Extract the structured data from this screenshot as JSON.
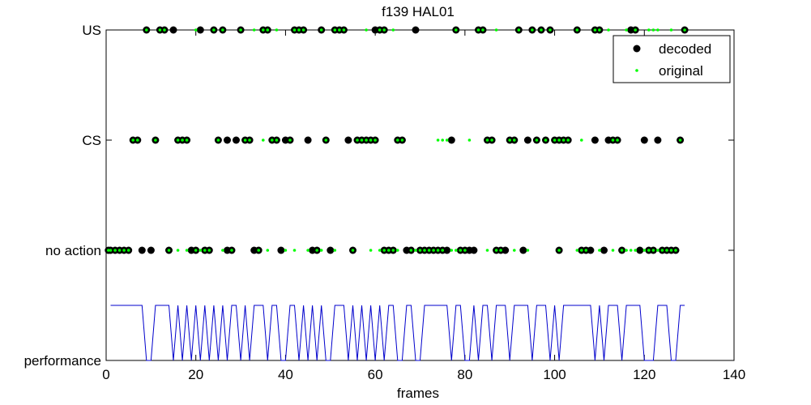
{
  "chart_data": {
    "type": "scatter",
    "title": "f139 HAL01",
    "xlabel": "frames",
    "ylabel": "",
    "xlim": [
      0,
      140
    ],
    "xticks": [
      0,
      20,
      40,
      60,
      80,
      100,
      120,
      140
    ],
    "y_categories": [
      "performance",
      "no action",
      "CS",
      "US"
    ],
    "grid": false,
    "legend_position": "top-right",
    "series": [
      {
        "name": "decoded",
        "marker": "filled-circle",
        "color": "#000000",
        "points": {
          "US": [
            9,
            12,
            13,
            15,
            21,
            24,
            26,
            30,
            35,
            36,
            42,
            43,
            44,
            48,
            51,
            52,
            53,
            60,
            61,
            62,
            69,
            78,
            83,
            84,
            92,
            95,
            97,
            99,
            105,
            109,
            110,
            117,
            118,
            129
          ],
          "CS": [
            6,
            7,
            11,
            16,
            17,
            18,
            25,
            27,
            29,
            31,
            32,
            37,
            38,
            40,
            41,
            45,
            49,
            54,
            56,
            57,
            58,
            59,
            60,
            65,
            66,
            77,
            85,
            86,
            90,
            91,
            94,
            96,
            98,
            100,
            101,
            102,
            103,
            109,
            112,
            113,
            114,
            120,
            123,
            128
          ],
          "no action": [
            0.5,
            1,
            2,
            3,
            4,
            5,
            8,
            10,
            14,
            19,
            20,
            22,
            23,
            27,
            28,
            33,
            34,
            39,
            46,
            47,
            50,
            55,
            62,
            63,
            64,
            67,
            68,
            70,
            71,
            72,
            73,
            74,
            75,
            76,
            79,
            80,
            81,
            82,
            87,
            88,
            89,
            93,
            101,
            106,
            107,
            108,
            111,
            115,
            119,
            121,
            122,
            124,
            125,
            126,
            127
          ]
        }
      },
      {
        "name": "original",
        "marker": "point",
        "color": "#00ff00",
        "points": {
          "US": [
            9,
            12,
            13,
            20,
            24,
            26,
            30,
            33,
            35,
            36,
            38,
            42,
            43,
            44,
            48,
            51,
            52,
            53,
            58,
            61,
            62,
            64,
            78,
            83,
            84,
            87,
            92,
            95,
            97,
            99,
            105,
            109,
            110,
            112,
            116,
            118,
            121,
            122,
            123,
            126,
            129
          ],
          "CS": [
            6,
            7,
            11,
            16,
            17,
            18,
            25,
            31,
            32,
            35,
            37,
            38,
            41,
            49,
            56,
            57,
            58,
            59,
            60,
            65,
            66,
            74,
            75,
            76,
            81,
            85,
            86,
            90,
            91,
            96,
            98,
            100,
            101,
            102,
            103,
            106,
            113,
            114,
            128
          ],
          "no action": [
            0.5,
            1,
            2,
            3,
            4,
            5,
            14,
            16,
            18,
            20,
            21,
            22,
            23,
            26,
            28,
            34,
            36,
            40,
            42,
            45,
            47,
            48,
            51,
            55,
            59,
            61,
            62,
            63,
            64,
            65,
            68,
            69,
            70,
            71,
            72,
            73,
            74,
            75,
            77,
            78,
            79,
            80,
            85,
            87,
            88,
            91,
            94,
            101,
            105,
            106,
            107,
            110,
            113,
            115,
            116,
            117,
            118,
            120,
            121,
            122,
            123,
            124,
            125,
            126,
            127
          ]
        }
      },
      {
        "name": "",
        "type": "line",
        "color": "#0000cc",
        "x": [
          1,
          8,
          9,
          10,
          11,
          12,
          13,
          14,
          15,
          16,
          17,
          18,
          19,
          20,
          21,
          22,
          23,
          24,
          25,
          26,
          27,
          28,
          29,
          30,
          31,
          32,
          33,
          34,
          35,
          36,
          37,
          38,
          39,
          40,
          41,
          42,
          43,
          44,
          45,
          46,
          47,
          48,
          49,
          50,
          51,
          52,
          53,
          54,
          55,
          56,
          57,
          58,
          59,
          60,
          61,
          62,
          63,
          64,
          65,
          66,
          67,
          68,
          69,
          70,
          71,
          72,
          73,
          74,
          75,
          76,
          77,
          78,
          79,
          80,
          81,
          82,
          83,
          84,
          85,
          86,
          87,
          88,
          89,
          90,
          91,
          92,
          93,
          94,
          95,
          96,
          97,
          98,
          99,
          100,
          101,
          102,
          103,
          104,
          105,
          106,
          107,
          108,
          109,
          110,
          111,
          112,
          113,
          114,
          115,
          116,
          117,
          118,
          119,
          120,
          121,
          122,
          123,
          124,
          125,
          126,
          127,
          128,
          129
        ],
        "y": [
          1,
          1,
          0,
          0,
          1,
          1,
          1,
          1,
          0,
          1,
          0,
          1,
          0,
          1,
          0,
          1,
          0,
          1,
          0,
          1,
          0,
          1,
          1,
          0,
          1,
          0,
          1,
          1,
          1,
          0,
          1,
          1,
          0,
          0,
          1,
          1,
          0,
          1,
          0,
          1,
          0,
          1,
          0,
          0,
          1,
          1,
          1,
          0,
          1,
          0,
          1,
          0,
          1,
          0,
          1,
          0,
          1,
          1,
          0,
          0,
          1,
          1,
          0,
          0,
          1,
          1,
          1,
          1,
          1,
          1,
          0,
          1,
          1,
          0,
          0,
          1,
          0,
          1,
          1,
          0,
          1,
          1,
          1,
          0,
          1,
          1,
          1,
          1,
          0,
          1,
          1,
          1,
          0,
          1,
          0,
          1,
          1,
          1,
          1,
          1,
          1,
          1,
          0,
          1,
          0,
          1,
          1,
          1,
          0,
          1,
          1,
          1,
          1,
          0,
          0,
          0,
          1,
          1,
          1,
          0,
          0,
          1,
          1
        ]
      }
    ]
  }
}
